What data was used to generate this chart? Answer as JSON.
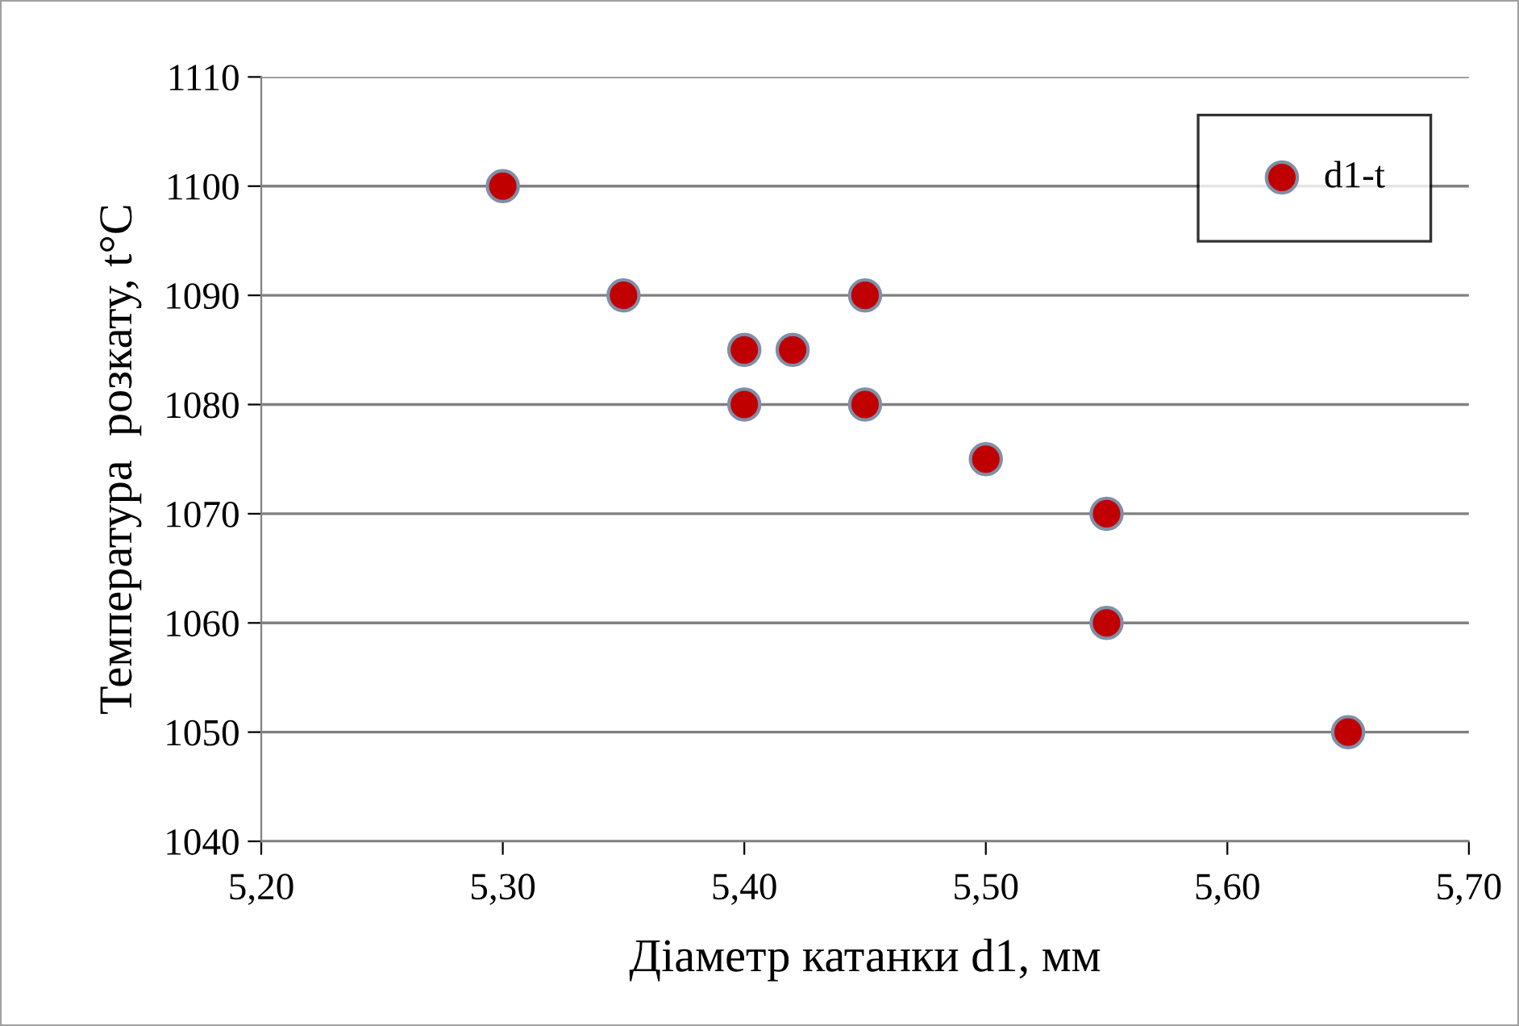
{
  "chart_data": {
    "type": "scatter",
    "xlabel": "Діаметр катанки d1, мм",
    "ylabel": "Температура  розкату, t°C",
    "series": [
      {
        "name": "d1-t",
        "color": "#c00000",
        "x": [
          5.3,
          5.35,
          5.4,
          5.42,
          5.45,
          5.4,
          5.45,
          5.5,
          5.55,
          5.55,
          5.65
        ],
        "values": [
          1100,
          1090,
          1085,
          1085,
          1090,
          1080,
          1080,
          1075,
          1070,
          1060,
          1050
        ]
      }
    ],
    "xlim": [
      5.2,
      5.7
    ],
    "xticks": [
      {
        "value": 5.2,
        "label": "5,20"
      },
      {
        "value": 5.3,
        "label": "5,30"
      },
      {
        "value": 5.4,
        "label": "5,40"
      },
      {
        "value": 5.5,
        "label": "5,50"
      },
      {
        "value": 5.6,
        "label": "5,60"
      },
      {
        "value": 5.7,
        "label": "5,70"
      }
    ],
    "ylim": [
      1040,
      1110
    ],
    "yticks": [
      1040,
      1050,
      1060,
      1070,
      1080,
      1090,
      1100,
      1110
    ],
    "grid": "y",
    "legend": "top right",
    "marker": "circle"
  }
}
